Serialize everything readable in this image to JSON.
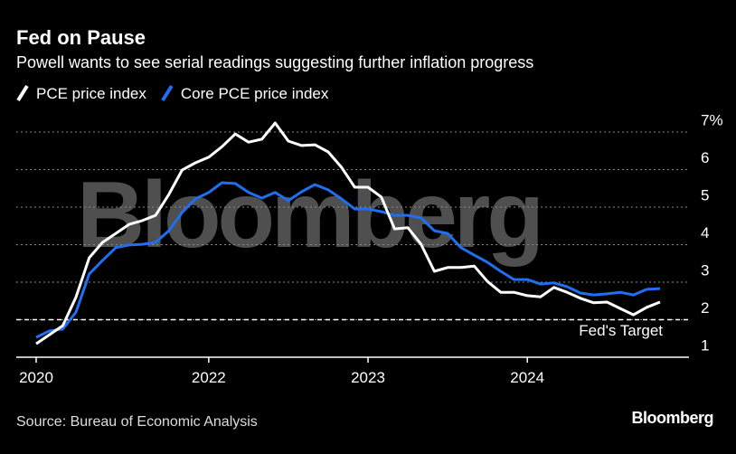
{
  "chart_data": {
    "type": "line",
    "title": "Fed on Pause",
    "subtitle": "Powell wants to see serial readings suggesting further inflation progress",
    "categories": [
      "2020",
      null,
      null,
      null,
      null,
      null,
      null,
      null,
      null,
      null,
      null,
      null,
      null,
      "2022",
      null,
      null,
      null,
      null,
      null,
      null,
      null,
      null,
      null,
      null,
      null,
      "2023",
      null,
      null,
      null,
      null,
      null,
      null,
      null,
      null,
      null,
      null,
      null,
      "2024",
      null,
      null,
      null,
      null,
      null,
      null,
      null,
      null,
      null,
      null
    ],
    "series": [
      {
        "name": "PCE price index",
        "color": "#ffffff",
        "values": [
          1.36,
          1.6,
          1.84,
          2.6,
          3.65,
          4.06,
          4.3,
          4.54,
          4.64,
          4.78,
          5.34,
          5.99,
          6.18,
          6.33,
          6.61,
          6.95,
          6.73,
          6.81,
          7.24,
          6.76,
          6.64,
          6.66,
          6.47,
          6.06,
          5.53,
          5.53,
          5.27,
          4.42,
          4.45,
          4.01,
          3.29,
          3.39,
          3.39,
          3.43,
          3.02,
          2.73,
          2.73,
          2.64,
          2.61,
          2.86,
          2.73,
          2.57,
          2.45,
          2.47,
          2.3,
          2.13,
          2.33,
          2.47
        ]
      },
      {
        "name": "Core PCE price index",
        "color": "#1f6ff0",
        "values": [
          1.53,
          1.7,
          1.75,
          2.2,
          3.22,
          3.58,
          3.92,
          3.99,
          4.01,
          4.06,
          4.37,
          4.86,
          5.22,
          5.39,
          5.65,
          5.63,
          5.39,
          5.24,
          5.39,
          5.17,
          5.41,
          5.6,
          5.46,
          5.22,
          4.95,
          4.95,
          4.88,
          4.78,
          4.78,
          4.71,
          4.37,
          4.3,
          3.92,
          3.72,
          3.53,
          3.29,
          3.07,
          3.07,
          2.95,
          2.98,
          2.88,
          2.71,
          2.66,
          2.69,
          2.73,
          2.66,
          2.81,
          2.83
        ]
      }
    ],
    "ylim": [
      1,
      7.4
    ],
    "yticks": [
      1,
      2,
      3,
      4,
      5,
      6,
      {
        "value": 7,
        "label": "7%"
      }
    ],
    "grid": true,
    "target": {
      "value": 2,
      "label": "Fed's Target"
    },
    "source": "Source: Bureau of Economic Analysis",
    "brand": "Bloomberg",
    "watermark": "Bloomberg"
  }
}
